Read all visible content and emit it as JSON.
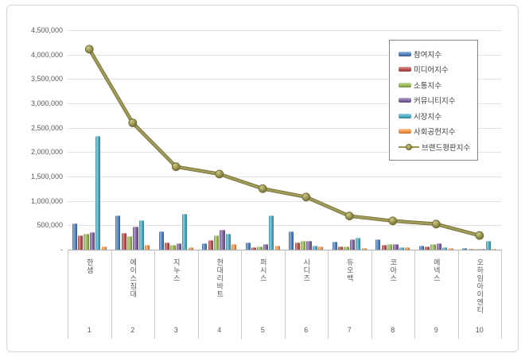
{
  "chart": {
    "y_axis": {
      "tick_labels": [
        "4,500,000",
        "4,000,000",
        "3,500,000",
        "3,000,000",
        "2,500,000",
        "2,000,000",
        "1,500,000",
        "1,000,000",
        "500,000",
        "-"
      ]
    },
    "x_axis": {
      "categories": [
        "한샘",
        "에이스침대",
        "지누스",
        "현대리바트",
        "퍼시스",
        "시디즈",
        "듀오백",
        "코아스",
        "에넥스",
        "오하임아이엔티"
      ],
      "ranks": [
        "1",
        "2",
        "3",
        "4",
        "5",
        "6",
        "7",
        "8",
        "9",
        "10"
      ]
    }
  },
  "palette": {
    "gridline": "#e2e2e2",
    "axis_line": "#ababab",
    "separator": "#c9c9c9",
    "tick_text": "#595959",
    "legend_text": "#3f3f3f",
    "legend_border": "#848484",
    "frame_border": "#d8d8d8"
  },
  "chart_data": {
    "type": "bar",
    "title": "",
    "xlabel": "",
    "ylabel": "",
    "ylim": [
      0,
      4500000
    ],
    "y_step": 500000,
    "grid": true,
    "legend_position": "top-right",
    "categories": [
      "한샘",
      "에이스침대",
      "지누스",
      "현대리바트",
      "퍼시스",
      "시디즈",
      "듀오백",
      "코아스",
      "에넥스",
      "오하임아이엔티"
    ],
    "category_ranks": [
      1,
      2,
      3,
      4,
      5,
      6,
      7,
      8,
      9,
      10
    ],
    "series": [
      {
        "name": "참여지수",
        "type": "bar",
        "color": "#4F81BD",
        "values": [
          540000,
          710000,
          370000,
          135000,
          155000,
          370000,
          165000,
          220000,
          85000,
          30000
        ]
      },
      {
        "name": "미디어지수",
        "type": "bar",
        "color": "#C0504D",
        "values": [
          300000,
          340000,
          145000,
          200000,
          50000,
          140000,
          70000,
          95000,
          65000,
          15000
        ]
      },
      {
        "name": "소통지수",
        "type": "bar",
        "color": "#9BBB59",
        "values": [
          330000,
          275000,
          100000,
          300000,
          65000,
          175000,
          60000,
          110000,
          120000,
          12000
        ]
      },
      {
        "name": "커뮤니티지수",
        "type": "bar",
        "color": "#8064A2",
        "values": [
          365000,
          470000,
          130000,
          410000,
          110000,
          175000,
          210000,
          110000,
          130000,
          18000
        ]
      },
      {
        "name": "시장지수",
        "type": "bar",
        "color": "#4BACC6",
        "values": [
          2330000,
          600000,
          740000,
          325000,
          700000,
          85000,
          245000,
          55000,
          50000,
          180000
        ]
      },
      {
        "name": "사회공헌지수",
        "type": "bar",
        "color": "#F79646",
        "values": [
          65000,
          100000,
          50000,
          110000,
          80000,
          70000,
          30000,
          45000,
          40000,
          20000
        ]
      },
      {
        "name": "브랜드평판지수",
        "type": "line",
        "color": "#98934C",
        "values": [
          4110000,
          2600000,
          1700000,
          1550000,
          1250000,
          1080000,
          690000,
          590000,
          525000,
          290000
        ]
      }
    ]
  }
}
